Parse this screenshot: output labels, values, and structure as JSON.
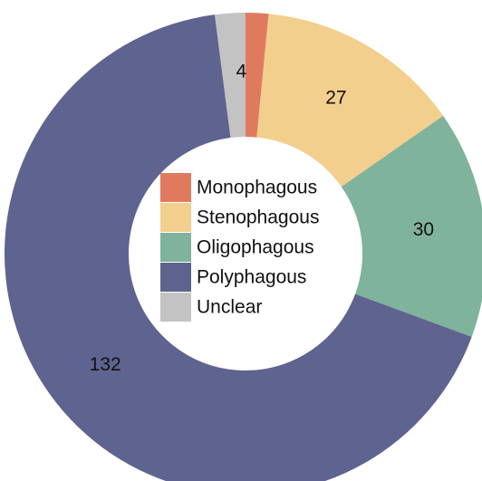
{
  "chart_data": {
    "type": "pie",
    "donut": true,
    "categories": [
      "Monophagous",
      "Stenophagous",
      "Oligophagous",
      "Polyphagous",
      "Unclear"
    ],
    "values": [
      3,
      27,
      30,
      132,
      4
    ],
    "colors": [
      "#e07a5f",
      "#f2cf8d",
      "#80b39b",
      "#5f6390",
      "#c3c3c3"
    ],
    "legend": "center"
  }
}
